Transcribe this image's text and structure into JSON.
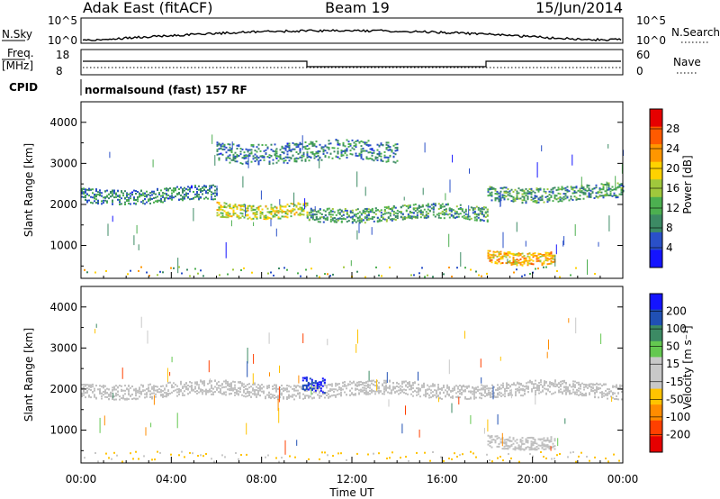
{
  "header": {
    "radar": "Adak East (fitACF)",
    "beam": "Beam 19",
    "date": "15/Jun/2014"
  },
  "noise_panel": {
    "left_label": "N.Sky",
    "right_label": "N.Search",
    "ticks": [
      "10^5",
      "10^0"
    ]
  },
  "freq_panel": {
    "left_label_1": "Freq.",
    "left_label_2": "[MHz]",
    "left_ticks": [
      "18",
      "8"
    ],
    "right_label": "Nave",
    "right_ticks": [
      "60",
      "0"
    ],
    "cpid_label": "CPID",
    "cpid_text": "normalsound (fast) 157 RF"
  },
  "colors": {
    "power_scale": [
      "#1414ff",
      "#2a50c8",
      "#3c8a64",
      "#4caf50",
      "#a0c83c",
      "#ffd200",
      "#ff9600",
      "#ff5a00",
      "#e60000"
    ],
    "velocity_scale": [
      "#e60000",
      "#ff4000",
      "#ff8c00",
      "#ffc300",
      "#c8c8c8",
      "#c8c8c8",
      "#64c850",
      "#3c8a64",
      "#2050b4",
      "#1414ff"
    ],
    "ground_scatter": "#c0c0c0"
  },
  "chart_data": [
    {
      "type": "heatmap",
      "title": "",
      "xlabel": "",
      "ylabel": "Slant Range [km]",
      "xticks": [
        "00:00",
        "04:00",
        "08:00",
        "12:00",
        "16:00",
        "20:00",
        "00:00"
      ],
      "xlim": [
        0,
        24
      ],
      "ylim": [
        200,
        4500
      ],
      "yticks": [
        1000,
        2000,
        3000,
        4000
      ],
      "colorbar": {
        "label": "Power [dB]",
        "ticks": [
          "28",
          "24",
          "20",
          "16",
          "12",
          "8",
          "4"
        ],
        "range": [
          0,
          30
        ]
      },
      "bands": [
        {
          "name": "lower echo band",
          "start_ut": 0.0,
          "end_ut": 6.0,
          "range_km": 2250,
          "value": 8
        },
        {
          "name": "lower echo band",
          "start_ut": 6.0,
          "end_ut": 10.0,
          "range_km": 1900,
          "value": 16
        },
        {
          "name": "lower echo band",
          "start_ut": 10.0,
          "end_ut": 18.0,
          "range_km": 1800,
          "value": 10
        },
        {
          "name": "lower echo band",
          "start_ut": 18.0,
          "end_ut": 24.0,
          "range_km": 2300,
          "value": 10
        },
        {
          "name": "upper echo patch",
          "start_ut": 6.0,
          "end_ut": 14.0,
          "range_km": 3300,
          "value": 8
        },
        {
          "name": "late low patch",
          "start_ut": 18.0,
          "end_ut": 21.0,
          "range_km": 750,
          "value": 20
        }
      ]
    },
    {
      "type": "heatmap",
      "title": "",
      "xlabel": "Time UT",
      "ylabel": "Slant Range [km]",
      "xticks": [
        "00:00",
        "04:00",
        "08:00",
        "12:00",
        "16:00",
        "20:00",
        "00:00"
      ],
      "xlim": [
        0,
        24
      ],
      "ylim": [
        200,
        4500
      ],
      "yticks": [
        1000,
        2000,
        3000,
        4000
      ],
      "colorbar": {
        "label": "Velocity [m s⁻¹]",
        "ticks": [
          "200",
          "100",
          "50",
          "15",
          "-15",
          "-50",
          "-100",
          "-200"
        ],
        "range": [
          -250,
          250
        ]
      },
      "bands": [
        {
          "name": "ground scatter band",
          "start_ut": 0.0,
          "end_ut": 24.0,
          "range_km": 2000,
          "value": 0
        },
        {
          "name": "blue patch",
          "start_ut": 9.8,
          "end_ut": 10.8,
          "range_km": 2150,
          "value": 200
        },
        {
          "name": "late low patch",
          "start_ut": 18.0,
          "end_ut": 21.0,
          "range_km": 750,
          "value": 0
        }
      ]
    }
  ]
}
